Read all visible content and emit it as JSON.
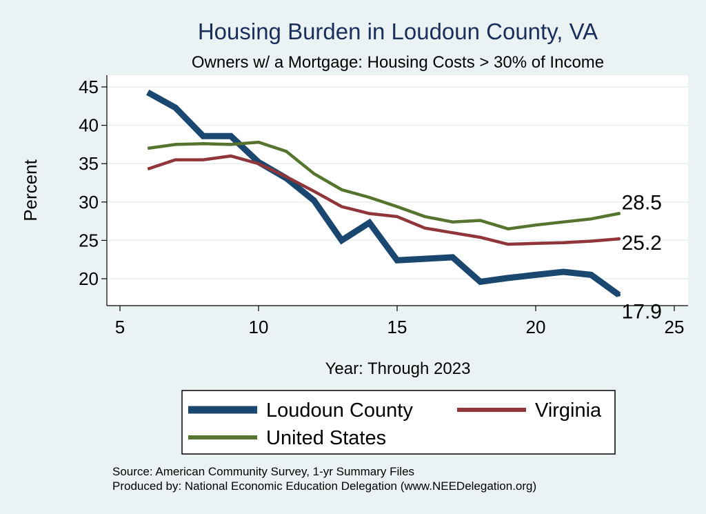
{
  "chart_data": {
    "type": "line",
    "title": "Housing Burden in Loudoun County, VA",
    "subtitle": "Owners w/ a Mortgage: Housing Costs > 30% of Income",
    "xlabel": "Year: Through 2023",
    "ylabel": "Percent",
    "xlim": [
      5,
      25
    ],
    "ylim": [
      17,
      46
    ],
    "xticks": [
      5,
      10,
      15,
      20,
      25
    ],
    "yticks": [
      20,
      25,
      30,
      35,
      40,
      45
    ],
    "grid": true,
    "legend_position": "bottom",
    "series": [
      {
        "name": "Loudoun County",
        "color": "#1a476f",
        "x": [
          6,
          7,
          8,
          9,
          10,
          11,
          12,
          13,
          14,
          15,
          16,
          17,
          18,
          19,
          20,
          21,
          22,
          23
        ],
        "y": [
          44.3,
          42.3,
          38.6,
          38.6,
          35.2,
          33.1,
          30.2,
          25.0,
          27.3,
          22.4,
          22.6,
          22.8,
          19.6,
          20.1,
          20.5,
          20.9,
          20.5,
          17.9
        ],
        "end_label": "17.9"
      },
      {
        "name": "Virginia",
        "color": "#90353b",
        "x": [
          6,
          7,
          8,
          9,
          10,
          11,
          12,
          13,
          14,
          15,
          16,
          17,
          18,
          19,
          20,
          21,
          22,
          23
        ],
        "y": [
          34.3,
          35.5,
          35.5,
          36.0,
          35.0,
          33.3,
          31.4,
          29.4,
          28.5,
          28.1,
          26.6,
          26.0,
          25.4,
          24.5,
          24.6,
          24.7,
          24.9,
          25.2
        ],
        "end_label": "25.2"
      },
      {
        "name": "United States",
        "color": "#55752f",
        "x": [
          6,
          7,
          8,
          9,
          10,
          11,
          12,
          13,
          14,
          15,
          16,
          17,
          18,
          19,
          20,
          21,
          22,
          23
        ],
        "y": [
          37.0,
          37.5,
          37.6,
          37.5,
          37.8,
          36.6,
          33.7,
          31.6,
          30.6,
          29.4,
          28.1,
          27.4,
          27.6,
          26.5,
          27.0,
          27.4,
          27.8,
          28.5
        ],
        "end_label": "28.5"
      }
    ]
  },
  "notes": {
    "source": "Source: American Community Survey, 1-yr Summary Files",
    "produced": "Produced by: National Economic Education Delegation (www.NEEDelegation.org)"
  }
}
